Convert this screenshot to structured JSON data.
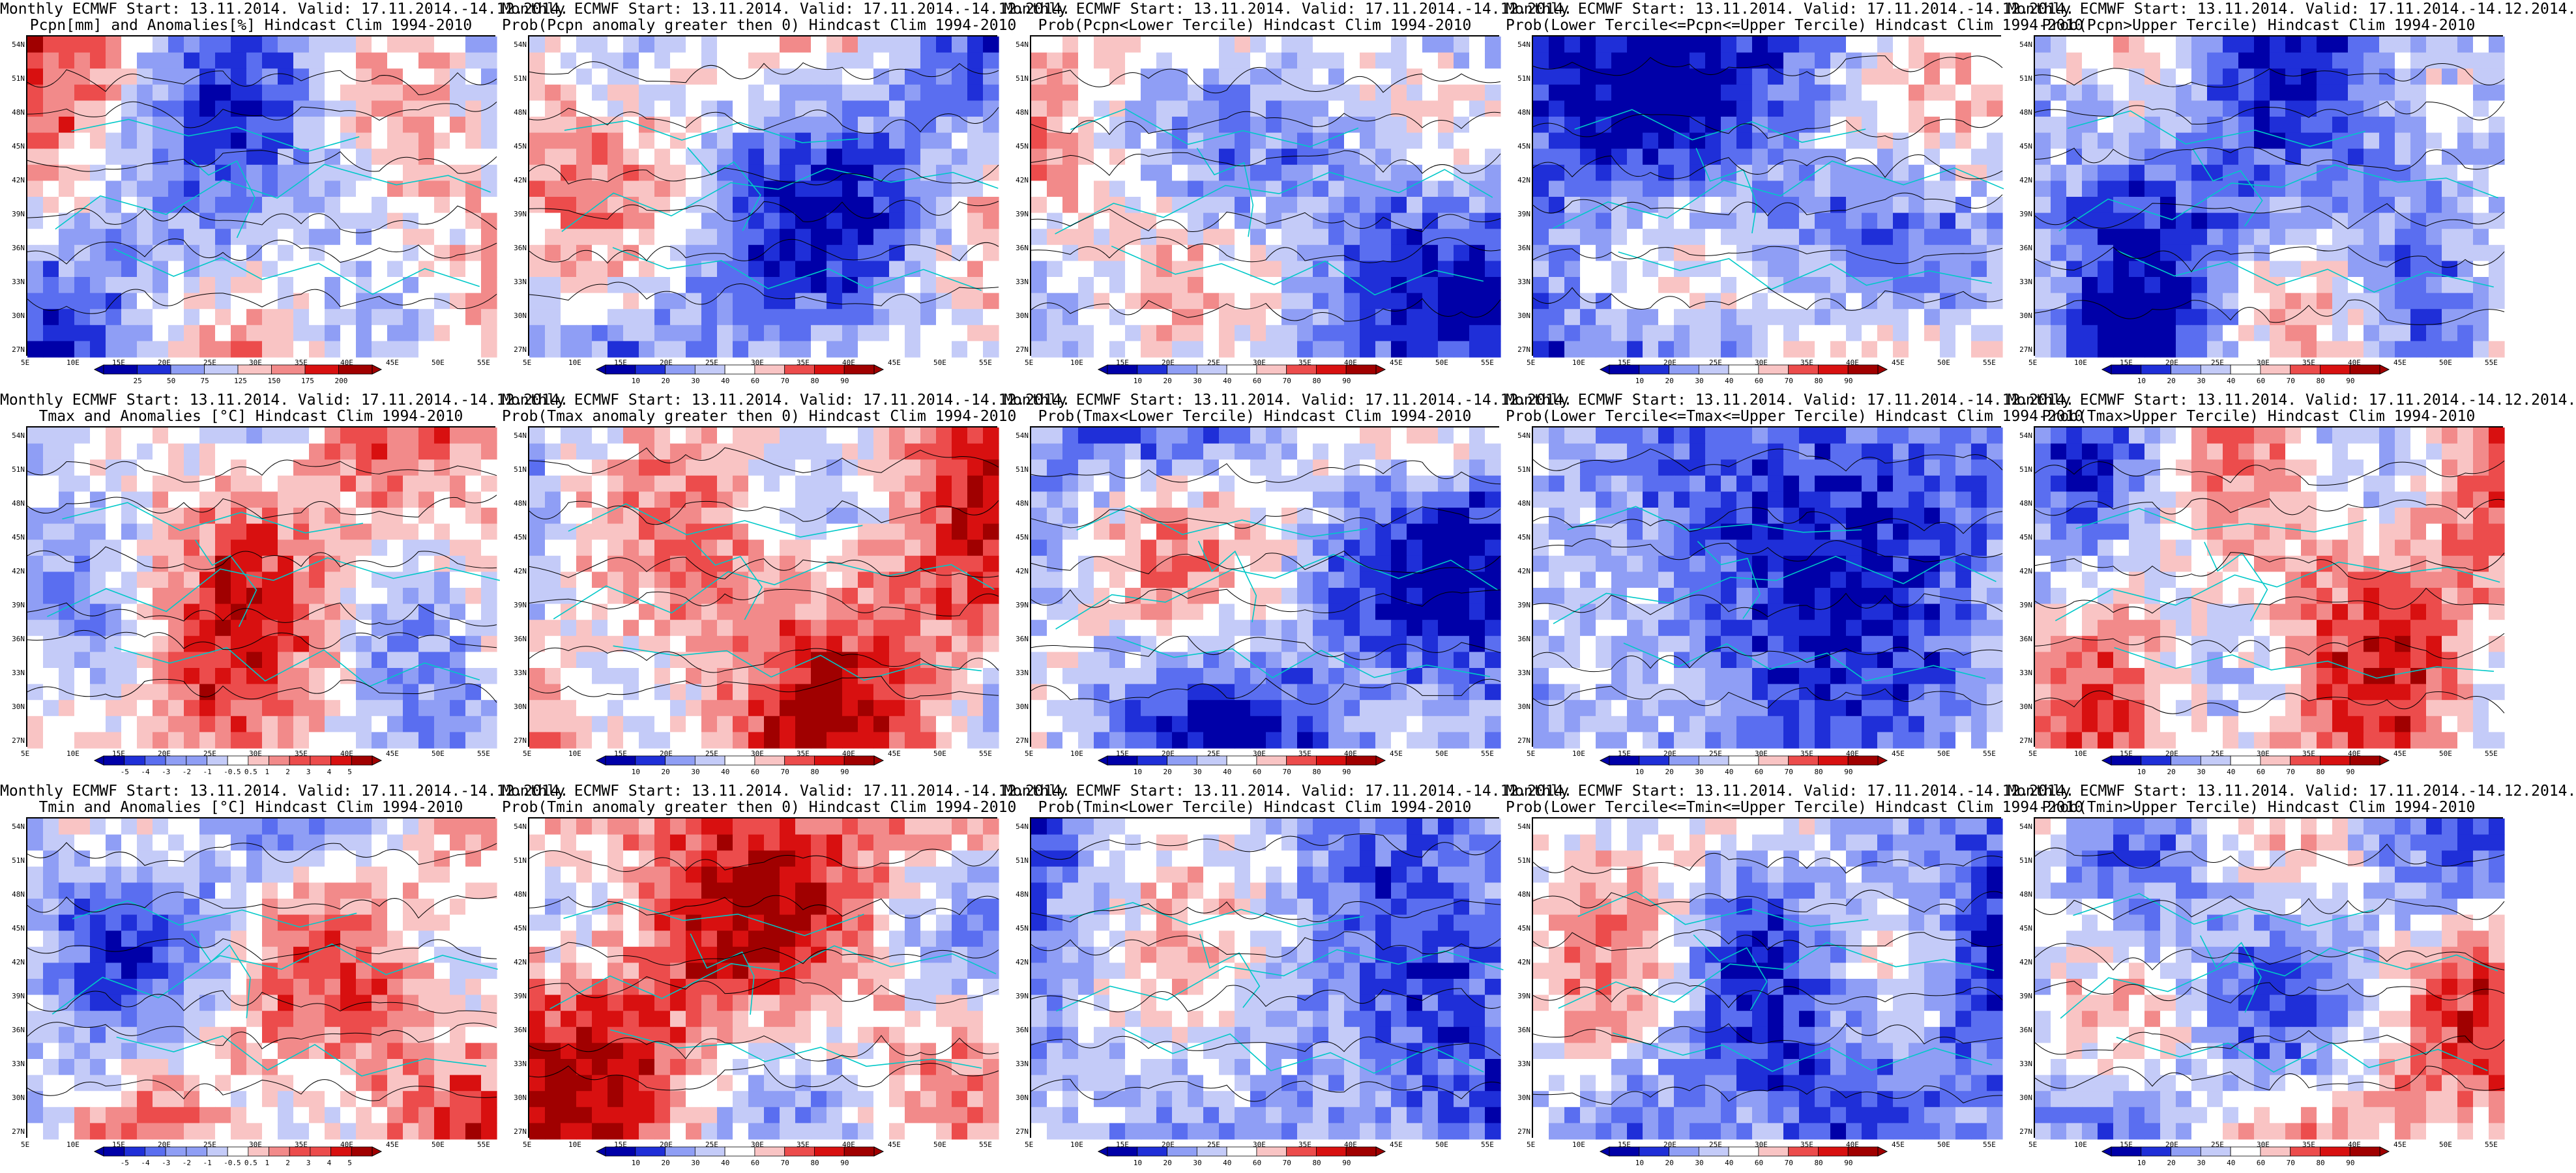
{
  "layout_cols": 5,
  "layout_rows": 3,
  "lat_ticks": [
    "54N",
    "51N",
    "48N",
    "45N",
    "42N",
    "39N",
    "36N",
    "33N",
    "30N",
    "27N"
  ],
  "lon_ticks": [
    "5E",
    "10E",
    "15E",
    "20E",
    "25E",
    "30E",
    "35E",
    "40E",
    "45E",
    "50E",
    "55E"
  ],
  "palette": {
    "diverging": [
      "#0000a8",
      "#1f2fd8",
      "#5a6ef0",
      "#8f9ef5",
      "#c4cbf8",
      "#ffffff",
      "#f9c4c4",
      "#f28a8a",
      "#ec4c4c",
      "#d81010",
      "#a00000"
    ],
    "coastline": "#00c8c8",
    "contour": "#000000"
  },
  "panels": [
    {
      "title1": "Monthly ECMWF Start: 13.11.2014. Valid: 17.11.2014.-14.12.2014.",
      "title2": "Pcpn[mm] and Anomalies[%] Hindcast Clim 1994-2010",
      "colorbar_ticks": [
        "25",
        "50",
        "75",
        "125",
        "150",
        "175",
        "200"
      ],
      "bias": 0.0,
      "seed": 3
    },
    {
      "title1": "Monthly ECMWF Start: 13.11.2014. Valid: 17.11.2014.-14.12.2014.",
      "title2": "Prob(Pcpn anomaly greater then 0) Hindcast Clim 1994-2010",
      "colorbar_ticks": [
        "10",
        "20",
        "30",
        "40",
        "60",
        "70",
        "80",
        "90"
      ],
      "bias": -0.1,
      "seed": 7
    },
    {
      "title1": "Monthly ECMWF Start: 13.11.2014. Valid: 17.11.2014.-14.12.2014.",
      "title2": "Prob(Pcpn<Lower Tercile) Hindcast Clim 1994-2010",
      "colorbar_ticks": [
        "10",
        "20",
        "30",
        "40",
        "60",
        "70",
        "80",
        "90"
      ],
      "bias": -0.2,
      "seed": 11
    },
    {
      "title1": "Monthly ECMWF Start: 13.11.2014. Valid: 17.11.2014.-14.12.2014.",
      "title2": "Prob(Lower Tercile<=Pcpn<=Upper Tercile) Hindcast Clim 1994-2010",
      "colorbar_ticks": [
        "10",
        "20",
        "30",
        "40",
        "60",
        "70",
        "80",
        "90"
      ],
      "bias": -0.35,
      "seed": 13
    },
    {
      "title1": "Monthly ECMWF Start: 13.11.2014. Valid: 17.11.2014.-14.12.2014.",
      "title2": "Prob(Pcpn>Upper Tercile) Hindcast Clim 1994-2010",
      "colorbar_ticks": [
        "10",
        "20",
        "30",
        "40",
        "60",
        "70",
        "80",
        "90"
      ],
      "bias": -0.25,
      "seed": 17
    },
    {
      "title1": "Monthly ECMWF Start: 13.11.2014. Valid: 17.11.2014.-14.12.2014.",
      "title2": "Tmax and Anomalies [°C] Hindcast Clim 1994-2010",
      "colorbar_ticks": [
        "-5",
        "-4",
        "-3",
        "-2",
        "-1",
        "-0.5",
        "0.5",
        "1",
        "2",
        "3",
        "4",
        "5"
      ],
      "bias": 0.0,
      "seed": 19
    },
    {
      "title1": "Monthly ECMWF Start: 13.11.2014. Valid: 17.11.2014.-14.12.2014.",
      "title2": "Prob(Tmax anomaly greater then 0) Hindcast Clim 1994-2010",
      "colorbar_ticks": [
        "10",
        "20",
        "30",
        "40",
        "60",
        "70",
        "80",
        "90"
      ],
      "bias": 0.2,
      "seed": 23
    },
    {
      "title1": "Monthly ECMWF Start: 13.11.2014. Valid: 17.11.2014.-14.12.2014.",
      "title2": "Prob(Tmax<Lower Tercile) Hindcast Clim 1994-2010",
      "colorbar_ticks": [
        "10",
        "20",
        "30",
        "40",
        "60",
        "70",
        "80",
        "90"
      ],
      "bias": -0.45,
      "seed": 29
    },
    {
      "title1": "Monthly ECMWF Start: 13.11.2014. Valid: 17.11.2014.-14.12.2014.",
      "title2": "Prob(Lower Tercile<=Tmax<=Upper Tercile) Hindcast Clim 1994-2010",
      "colorbar_ticks": [
        "10",
        "20",
        "30",
        "40",
        "60",
        "70",
        "80",
        "90"
      ],
      "bias": -0.4,
      "seed": 31
    },
    {
      "title1": "Monthly ECMWF Start: 13.11.2014. Valid: 17.11.2014.-14.12.2014.",
      "title2": "Prob(Tmax>Upper Tercile) Hindcast Clim 1994-2010",
      "colorbar_ticks": [
        "10",
        "20",
        "30",
        "40",
        "60",
        "70",
        "80",
        "90"
      ],
      "bias": 0.05,
      "seed": 37
    },
    {
      "title1": "Monthly ECMWF Start: 13.11.2014. Valid: 17.11.2014.-14.12.2014.",
      "title2": "Tmin and Anomalies [°C] Hindcast Clim 1994-2010",
      "colorbar_ticks": [
        "-5",
        "-4",
        "-3",
        "-2",
        "-1",
        "-0.5",
        "0.5",
        "1",
        "2",
        "3",
        "4",
        "5"
      ],
      "bias": 0.05,
      "seed": 41
    },
    {
      "title1": "Monthly ECMWF Start: 13.11.2014. Valid: 17.11.2014.-14.12.2014.",
      "title2": "Prob(Tmin anomaly greater then 0) Hindcast Clim 1994-2010",
      "colorbar_ticks": [
        "10",
        "20",
        "30",
        "40",
        "60",
        "70",
        "80",
        "90"
      ],
      "bias": 0.25,
      "seed": 43
    },
    {
      "title1": "Monthly ECMWF Start: 13.11.2014. Valid: 17.11.2014.-14.12.2014.",
      "title2": "Prob(Tmin<Lower Tercile) Hindcast Clim 1994-2010",
      "colorbar_ticks": [
        "10",
        "20",
        "30",
        "40",
        "60",
        "70",
        "80",
        "90"
      ],
      "bias": -0.5,
      "seed": 47
    },
    {
      "title1": "Monthly ECMWF Start: 13.11.2014. Valid: 17.11.2014.-14.12.2014.",
      "title2": "Prob(Lower Tercile<=Tmin<=Upper Tercile) Hindcast Clim 1994-2010",
      "colorbar_ticks": [
        "10",
        "20",
        "30",
        "40",
        "60",
        "70",
        "80",
        "90"
      ],
      "bias": -0.3,
      "seed": 53
    },
    {
      "title1": "Monthly ECMWF Start: 13.11.2014. Valid: 17.11.2014.-14.12.2014.",
      "title2": "Prob(Tmin>Upper Tercile) Hindcast Clim 1994-2010",
      "colorbar_ticks": [
        "10",
        "20",
        "30",
        "40",
        "60",
        "70",
        "80",
        "90"
      ],
      "bias": 0.0,
      "seed": 59
    }
  ],
  "chart_data": {
    "type": "heatmap",
    "x": [
      "5E",
      "10E",
      "15E",
      "20E",
      "25E",
      "30E",
      "35E",
      "40E",
      "45E",
      "50E",
      "55E"
    ],
    "y": [
      "54N",
      "51N",
      "48N",
      "45N",
      "42N",
      "39N",
      "36N",
      "33N",
      "30N",
      "27N"
    ],
    "grid": "off"
  }
}
